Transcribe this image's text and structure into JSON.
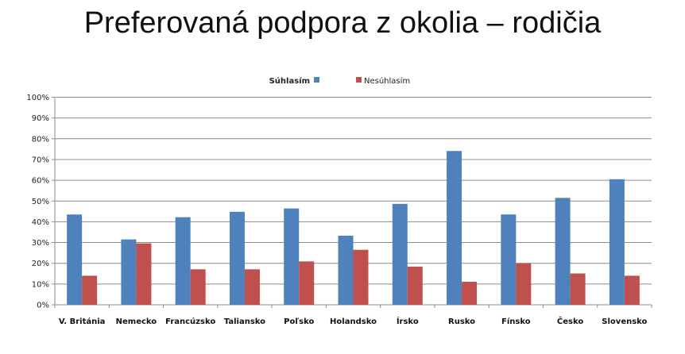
{
  "chart_data": {
    "type": "bar",
    "title": "Preferovaná podpora z okolia – rodičia",
    "xlabel": "",
    "ylabel": "",
    "ylim": [
      0,
      100
    ],
    "yticks": [
      "0%",
      "10%",
      "20%",
      "30%",
      "40%",
      "50%",
      "60%",
      "70%",
      "80%",
      "90%",
      "100%"
    ],
    "grid": true,
    "legend_position": "top",
    "categories": [
      "V. Británia",
      "Nemecko",
      "Francúzsko",
      "Taliansko",
      "Poľsko",
      "Holandsko",
      "Írsko",
      "Rusko",
      "Fínsko",
      "Česko",
      "Slovensko"
    ],
    "series": [
      {
        "name": "Súhlasím",
        "color": "#4f81bd",
        "values": [
          43.5,
          31.5,
          42.2,
          44.8,
          46.4,
          33.3,
          48.6,
          74.1,
          43.5,
          51.5,
          60.5
        ]
      },
      {
        "name": "Nesúhlasím",
        "color": "#c0504d",
        "values": [
          14.0,
          29.6,
          17.1,
          17.1,
          20.9,
          26.5,
          18.4,
          11.1,
          20.0,
          15.1,
          14.0
        ]
      }
    ]
  }
}
